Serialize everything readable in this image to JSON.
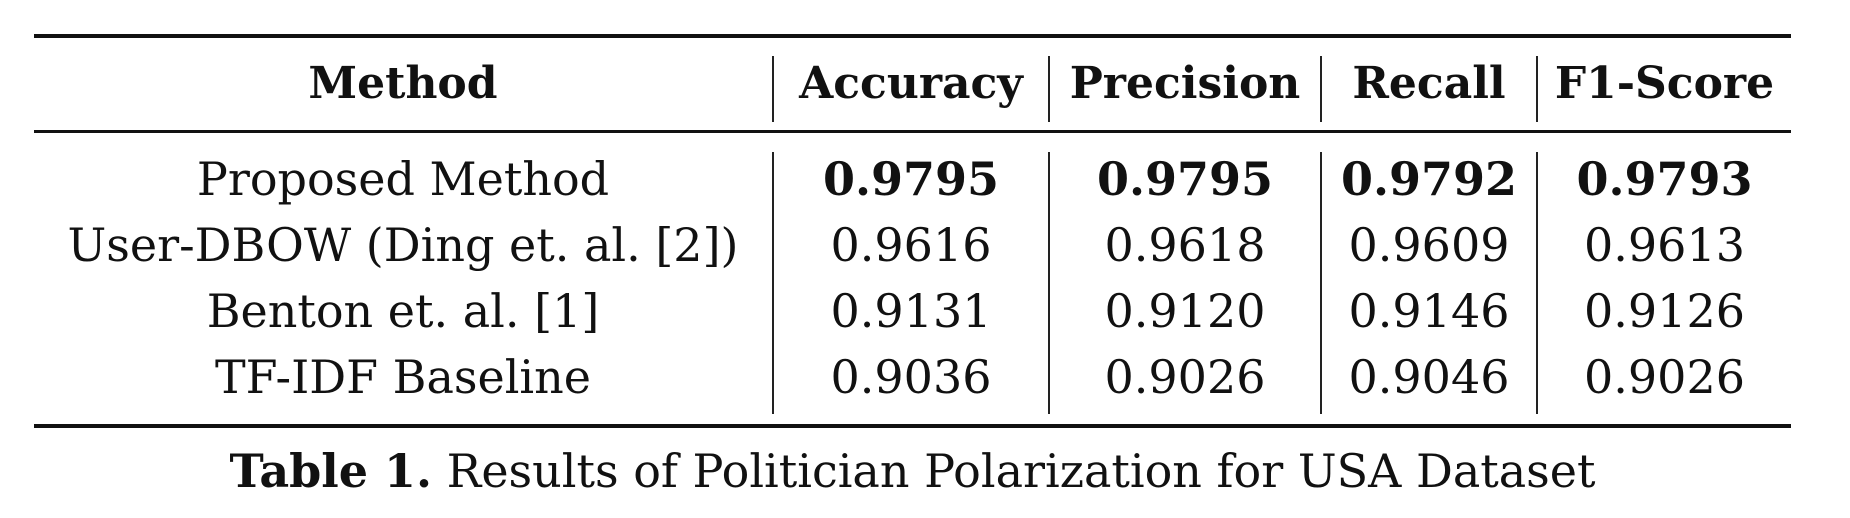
{
  "table": {
    "headers": [
      "Method",
      "Accuracy",
      "Precision",
      "Recall",
      "F1-Score"
    ],
    "rows": [
      {
        "method": "Proposed Method",
        "accuracy": "0.9795",
        "precision": "0.9795",
        "recall": "0.9792",
        "f1": "0.9793",
        "bold": true
      },
      {
        "method": "User-DBOW (Ding et. al. [2])",
        "accuracy": "0.9616",
        "precision": "0.9618",
        "recall": "0.9609",
        "f1": "0.9613",
        "bold": false
      },
      {
        "method": "Benton et. al. [1]",
        "accuracy": "0.9131",
        "precision": "0.9120",
        "recall": "0.9146",
        "f1": "0.9126",
        "bold": false
      },
      {
        "method": "TF-IDF Baseline",
        "accuracy": "0.9036",
        "precision": "0.9026",
        "recall": "0.9046",
        "f1": "0.9026",
        "bold": false
      }
    ]
  },
  "caption": {
    "label": "Table 1.",
    "text": " Results of Politician Polarization for USA Dataset"
  }
}
